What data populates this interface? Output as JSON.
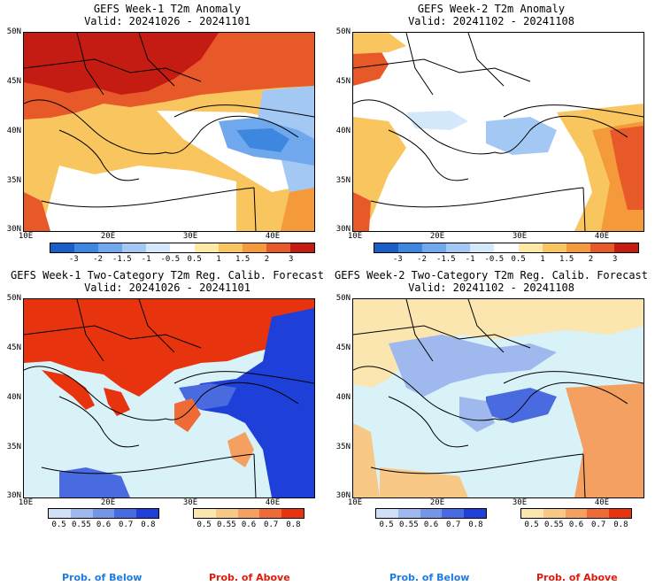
{
  "panels": [
    {
      "title_line1": "GEFS Week-1 T2m Anomaly",
      "title_line2": "Valid: 20241026 - 20241101"
    },
    {
      "title_line1": "GEFS Week-2 T2m Anomaly",
      "title_line2": "Valid: 20241102 - 20241108"
    },
    {
      "title_line1": "GEFS Week-1 Two-Category T2m Reg. Calib. Forecast",
      "title_line2": "Valid: 20241026 - 20241101"
    },
    {
      "title_line1": "GEFS Week-2 Two-Category T2m Reg. Calib. Forecast",
      "title_line2": "Valid: 20241102 - 20241108"
    }
  ],
  "axes": {
    "lat_labels": [
      "50N",
      "45N",
      "40N",
      "35N",
      "30N"
    ],
    "lon_labels": [
      "10E",
      "20E",
      "30E",
      "40E"
    ]
  },
  "anomaly_colorbar": {
    "labels": [
      "-3",
      "-2",
      "-1.5",
      "-1",
      "-0.5",
      "0.5",
      "1",
      "1.5",
      "2",
      "3"
    ],
    "colors": [
      "#1a5fc8",
      "#3d87e0",
      "#6fa8ec",
      "#a3c8f4",
      "#d3e8fa",
      "#ffffff",
      "#fde9a6",
      "#f9c55e",
      "#f59a3a",
      "#e8592a",
      "#c41c12"
    ]
  },
  "prob_colorbars": {
    "below_labels": [
      "0.5",
      "0.55",
      "0.6",
      "0.7",
      "0.8"
    ],
    "below_colors": [
      "#cfe0f7",
      "#9fb9ee",
      "#7596e6",
      "#4a6ae0",
      "#1e3fd8"
    ],
    "above_labels": [
      "0.5",
      "0.55",
      "0.6",
      "0.7",
      "0.8"
    ],
    "above_colors": [
      "#fbe6b0",
      "#f8c886",
      "#f4a060",
      "#ee6a36",
      "#e8340e"
    ]
  },
  "legend_text": {
    "below": "Prob. of Below",
    "above": "Prob. of Above",
    "below_color": "#1e7be0",
    "above_color": "#e01a0a"
  },
  "colors": {
    "sea_prob": "#d8f2f8",
    "coast": "#000000"
  }
}
